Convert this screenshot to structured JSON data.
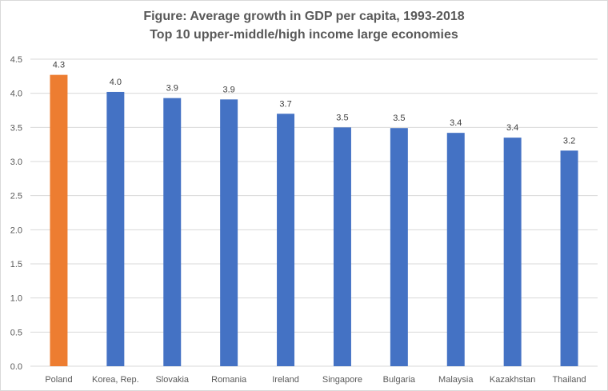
{
  "chart_data": {
    "type": "bar",
    "title": "Figure: Average growth in GDP per capita, 1993-2018",
    "subtitle": "Top 10 upper-middle/high income large economies",
    "categories": [
      "Poland",
      "Korea, Rep.",
      "Slovakia",
      "Romania",
      "Ireland",
      "Singapore",
      "Bulgaria",
      "Malaysia",
      "Kazakhstan",
      "Thailand"
    ],
    "values": [
      4.27,
      4.02,
      3.93,
      3.91,
      3.7,
      3.5,
      3.49,
      3.42,
      3.35,
      3.16
    ],
    "data_labels": [
      "4.3",
      "4.0",
      "3.9",
      "3.9",
      "3.7",
      "3.5",
      "3.5",
      "3.4",
      "3.4",
      "3.2"
    ],
    "yticks": [
      "0.0",
      "0.5",
      "1.0",
      "1.5",
      "2.0",
      "2.5",
      "3.0",
      "3.5",
      "4.0",
      "4.5"
    ],
    "ylim": [
      0,
      4.5
    ],
    "grid": true,
    "legend": "none",
    "colors": {
      "highlight": "#ED7D31",
      "default": "#4472C4",
      "gridline": "#d9d9d9"
    },
    "highlight_index": 0
  }
}
